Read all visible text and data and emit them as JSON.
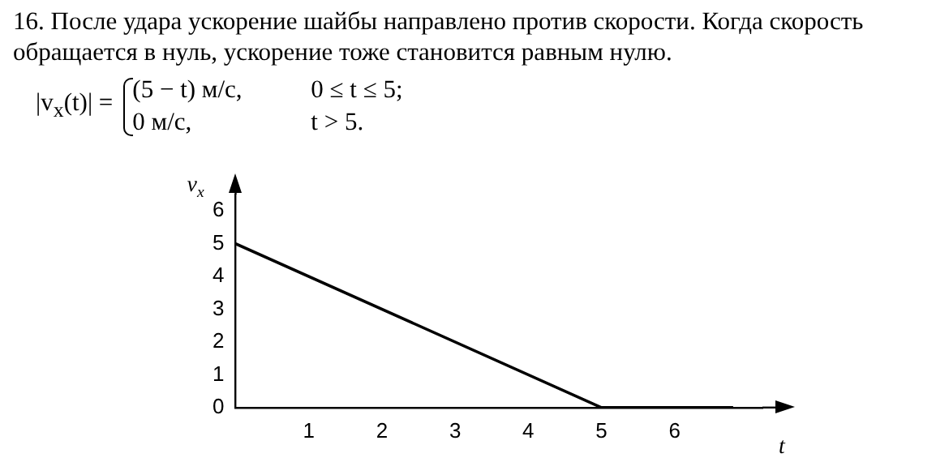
{
  "chart_data": {
    "type": "line",
    "title": "16. После удара ускорение шайбы направлено против скорости. Когда скорость обращается в нуль, ускорение тоже становится равным нулю.",
    "annotations": [
      "|v$_{x}$(t)| =",
      "(5 − t) м/с,",
      "0 ≤ t ≤ 5;",
      "0 м/с,",
      "t > 5."
    ],
    "xlabel": "t",
    "ylabel": "v$_{x}$",
    "series": [
      {
        "x": [
          0,
          5,
          6.8
        ],
        "values": [
          5,
          0,
          0
        ],
        "color": "#000000"
      }
    ],
    "xlim": [
      0,
      7.2
    ],
    "ylim": [
      0,
      6.5
    ],
    "xticks": [
      1,
      2,
      3,
      4,
      5,
      6
    ],
    "yticks": [
      0,
      1,
      2,
      3,
      4,
      5,
      6
    ],
    "grid": false,
    "legend": false,
    "marker": "none",
    "line_style": "solid"
  }
}
